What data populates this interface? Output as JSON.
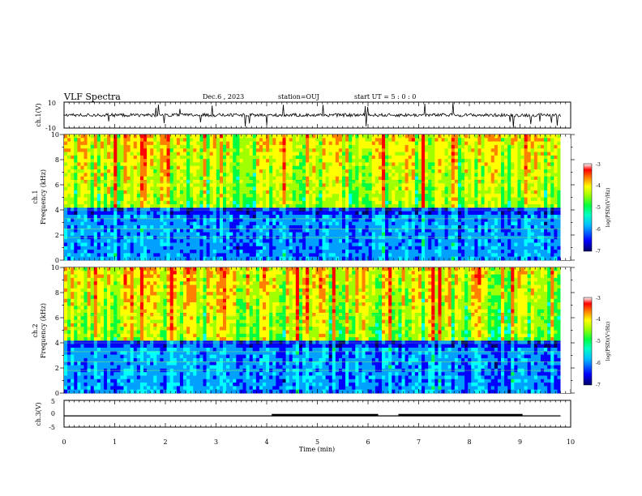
{
  "header": {
    "title": "VLF Spectra",
    "date": "Dec.6 , 2023",
    "station": "station=OUJ",
    "start_ut": "start UT = 5 : 0 : 0"
  },
  "colors": {
    "colormap": [
      "#000066",
      "#0000ff",
      "#00a0ff",
      "#00ffff",
      "#00ff40",
      "#a0ff00",
      "#ffff00",
      "#ff8000",
      "#ff0000",
      "#ffffff"
    ],
    "axis": "#000000"
  },
  "chart_data": [
    {
      "type": "line",
      "panel": "ch1-waveform",
      "ylabel": "ch.1(V)",
      "ylim": [
        -10,
        10
      ],
      "yticks": [
        "10",
        "-10"
      ],
      "x_range_min": [
        0,
        9.8
      ],
      "baseline_value": 0,
      "description_of_signal": "noise with sporadic spikes"
    },
    {
      "type": "heatmap",
      "panel": "ch1-spectrogram",
      "ylabel": "ch.1\nFrequency (kHz)",
      "ylim": [
        0,
        10
      ],
      "yticks": [
        "0",
        "2",
        "4",
        "6",
        "8",
        "10"
      ],
      "x_range_min": [
        0,
        9.8
      ],
      "colorbar": {
        "label": "log(PSD)(V²/Hz)",
        "range": [
          -7,
          -3
        ],
        "ticks": [
          "-3",
          "-4",
          "-5",
          "-6",
          "-7"
        ]
      }
    },
    {
      "type": "heatmap",
      "panel": "ch2-spectrogram",
      "ylabel": "ch.2\nFrequency (kHz)",
      "ylim": [
        0,
        10
      ],
      "yticks": [
        "0",
        "2",
        "4",
        "6",
        "8",
        "10"
      ],
      "x_range_min": [
        0,
        9.8
      ],
      "colorbar": {
        "label": "log(PSD)(V²/Hz)",
        "range": [
          -7,
          -3
        ],
        "ticks": [
          "-3",
          "-4",
          "-5",
          "-6",
          "-7"
        ]
      }
    },
    {
      "type": "line",
      "panel": "ch3-waveform",
      "ylabel": "ch.3(V)",
      "ylim": [
        -5,
        5
      ],
      "yticks": [
        "5",
        "0",
        "-5"
      ],
      "x_range_min": [
        0,
        9.8
      ],
      "baseline_value": -0.8,
      "thick_segments_min": [
        [
          4.1,
          6.2
        ],
        [
          6.6,
          9.05
        ]
      ]
    }
  ],
  "xaxis": {
    "label": "Time (min)",
    "range": [
      0,
      10
    ],
    "ticks": [
      "0",
      "1",
      "2",
      "3",
      "4",
      "5",
      "6",
      "7",
      "8",
      "9",
      "10"
    ]
  },
  "colorbar_labels": {
    "top": "log(PSD)(V²/Hz)",
    "bottom": "log(PSD)(V²/Hz)"
  }
}
